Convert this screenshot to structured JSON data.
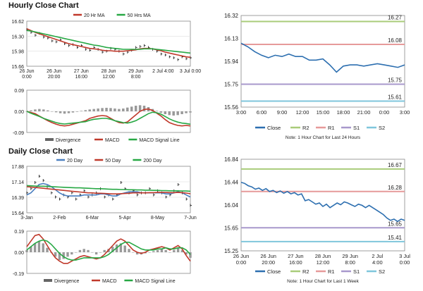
{
  "titles": {
    "hourly": "Hourly Close Chart",
    "daily": "Daily Close Chart"
  },
  "colors": {
    "price": "#111111",
    "ma_short": "#c0392b",
    "ma_long": "#27a844",
    "ma_daily_20": "#4a7fc0",
    "macd": "#c0392b",
    "signal": "#27a844",
    "divergence": "#666666",
    "close": "#2d6fb0",
    "r2": "#a9cc7a",
    "r1": "#e69a9a",
    "s1": "#a898cc",
    "s2": "#7fc6dc"
  },
  "chart_data": [
    {
      "id": "hourly_price",
      "type": "line",
      "legend": [
        "20 Hr MA",
        "50 Hrs MA"
      ],
      "ylim": [
        15.66,
        16.62
      ],
      "yticks": [
        "16.62",
        "16.30",
        "15.98",
        "15.66"
      ],
      "xticks": [
        [
          "26 Jun",
          "0:00"
        ],
        [
          "26 Jun",
          "20:00"
        ],
        [
          "27 Jun",
          "16:00"
        ],
        [
          "28 Jun",
          "12:00"
        ],
        [
          "29 Jun",
          "8:00"
        ],
        [
          "2 Jul 4:00",
          ""
        ],
        [
          "3 Jul 0:00",
          ""
        ]
      ],
      "series": [
        {
          "name": "Close",
          "values": [
            16.44,
            16.38,
            16.32,
            16.36,
            16.28,
            16.26,
            16.2,
            16.18,
            16.22,
            16.14,
            16.1,
            16.12,
            16.06,
            16.1,
            16.02,
            16.0,
            16.06,
            16.02,
            15.96,
            15.98,
            16.04,
            16.02,
            15.98,
            15.92,
            15.96,
            16.0,
            16.06,
            16.08,
            16.1,
            16.06,
            16.02,
            15.98,
            15.92,
            15.9,
            15.86,
            15.84,
            15.8,
            15.86,
            15.82,
            15.84
          ]
        },
        {
          "name": "20 Hr MA",
          "values": [
            16.46,
            16.42,
            16.38,
            16.35,
            16.32,
            16.29,
            16.26,
            16.23,
            16.2,
            16.17,
            16.14,
            16.12,
            16.1,
            16.08,
            16.06,
            16.04,
            16.03,
            16.02,
            16.0,
            15.99,
            15.99,
            15.98,
            15.98,
            15.98,
            15.99,
            16.0,
            16.01,
            16.03,
            16.04,
            16.04,
            16.03,
            16.01,
            15.99,
            15.96,
            15.94,
            15.92,
            15.9,
            15.88,
            15.86,
            15.85
          ]
        },
        {
          "name": "50 Hrs MA",
          "values": [
            16.42,
            16.41,
            16.39,
            16.37,
            16.35,
            16.33,
            16.31,
            16.29,
            16.27,
            16.25,
            16.23,
            16.21,
            16.19,
            16.17,
            16.15,
            16.13,
            16.11,
            16.1,
            16.08,
            16.06,
            16.05,
            16.04,
            16.03,
            16.02,
            16.02,
            16.02,
            16.02,
            16.02,
            16.03,
            16.03,
            16.03,
            16.02,
            16.01,
            16.0,
            15.99,
            15.98,
            15.97,
            15.96,
            15.95,
            15.94
          ]
        }
      ]
    },
    {
      "id": "hourly_macd",
      "type": "line",
      "legend": [
        "Divergence",
        "MACD",
        "MACD Signal Line"
      ],
      "ylim": [
        -0.09,
        0.09
      ],
      "yticks": [
        "0.09",
        "0.00",
        "-0.09"
      ],
      "series": [
        {
          "name": "Divergence",
          "values": [
            0.0,
            0.004,
            0.008,
            0.01,
            0.008,
            0.004,
            0.0,
            -0.004,
            -0.008,
            -0.01,
            -0.008,
            -0.005,
            -0.002,
            0.002,
            0.005,
            0.008,
            0.01,
            0.012,
            0.014,
            0.015,
            0.014,
            0.012,
            0.01,
            0.012,
            0.016,
            0.02,
            0.024,
            0.026,
            0.024,
            0.018,
            0.01,
            0.002,
            -0.006,
            -0.012,
            -0.016,
            -0.018,
            -0.016,
            -0.012,
            -0.008,
            -0.005
          ]
        },
        {
          "name": "MACD",
          "values": [
            0.0,
            -0.005,
            -0.01,
            -0.02,
            -0.03,
            -0.04,
            -0.048,
            -0.055,
            -0.06,
            -0.062,
            -0.06,
            -0.055,
            -0.05,
            -0.045,
            -0.04,
            -0.03,
            -0.025,
            -0.02,
            -0.018,
            -0.02,
            -0.03,
            -0.04,
            -0.048,
            -0.05,
            -0.045,
            -0.03,
            -0.015,
            0.0,
            0.008,
            0.01,
            0.004,
            -0.008,
            -0.02,
            -0.035,
            -0.048,
            -0.055,
            -0.06,
            -0.062,
            -0.06,
            -0.062
          ]
        },
        {
          "name": "MACD Signal Line",
          "values": [
            0.0,
            -0.008,
            -0.015,
            -0.022,
            -0.03,
            -0.036,
            -0.042,
            -0.048,
            -0.052,
            -0.054,
            -0.052,
            -0.05,
            -0.048,
            -0.046,
            -0.044,
            -0.038,
            -0.034,
            -0.032,
            -0.03,
            -0.03,
            -0.034,
            -0.04,
            -0.044,
            -0.048,
            -0.05,
            -0.046,
            -0.04,
            -0.03,
            -0.02,
            -0.01,
            -0.004,
            -0.006,
            -0.012,
            -0.022,
            -0.032,
            -0.04,
            -0.046,
            -0.05,
            -0.052,
            -0.055
          ]
        }
      ]
    },
    {
      "id": "hourly_24h",
      "type": "line",
      "ylim": [
        15.56,
        16.32
      ],
      "yticks": [
        "16.32",
        "16.13",
        "15.94",
        "15.75",
        "15.56"
      ],
      "xticks": [
        "3:00",
        "6:00",
        "9:00",
        "12:00",
        "15:00",
        "18:00",
        "21:00",
        "0:00",
        "3:00"
      ],
      "levels": [
        {
          "name": "R2",
          "value": 16.27,
          "label": "16.27"
        },
        {
          "name": "R1",
          "value": 16.08,
          "label": "16.08"
        },
        {
          "name": "S1",
          "value": 15.75,
          "label": "15.75"
        },
        {
          "name": "S2",
          "value": 15.61,
          "label": "15.61"
        }
      ],
      "legend": [
        "Close",
        "R2",
        "R1",
        "S1",
        "S2"
      ],
      "note": "Note: 1 Hour Chart for Last 24 Hours",
      "series": [
        {
          "name": "Close",
          "values": [
            16.09,
            16.06,
            16.02,
            15.99,
            15.97,
            15.99,
            15.98,
            16.0,
            15.98,
            15.98,
            15.95,
            15.95,
            15.96,
            15.91,
            15.85,
            15.9,
            15.91,
            15.91,
            15.9,
            15.91,
            15.92,
            15.91,
            15.9,
            15.89,
            15.91
          ]
        }
      ]
    },
    {
      "id": "daily_price",
      "type": "line",
      "legend": [
        "20 Day",
        "50 Day",
        "200 Day"
      ],
      "ylim": [
        15.64,
        17.88
      ],
      "yticks": [
        "17.88",
        "17.14",
        "16.39",
        "15.64"
      ],
      "xticks": [
        "3-Jan",
        "2-Feb",
        "6-Mar",
        "5-Apr",
        "8-May",
        "7-Jun"
      ],
      "series": [
        {
          "name": "Close",
          "values": [
            16.6,
            16.8,
            17.1,
            17.4,
            17.2,
            16.9,
            16.6,
            16.4,
            16.3,
            16.5,
            16.4,
            16.6,
            16.3,
            16.5,
            16.7,
            16.4,
            16.5,
            16.6,
            16.8,
            16.4,
            16.5,
            16.3,
            16.5,
            17.1,
            16.8,
            16.6,
            16.7,
            16.5,
            16.6,
            16.6,
            16.8,
            16.5,
            16.7,
            16.6,
            16.4,
            16.5,
            16.7,
            17.0,
            16.6,
            16.3,
            16.0
          ]
        },
        {
          "name": "20 Day",
          "values": [
            16.5,
            16.6,
            16.8,
            17.0,
            17.05,
            17.0,
            16.9,
            16.75,
            16.6,
            16.5,
            16.45,
            16.45,
            16.45,
            16.45,
            16.5,
            16.5,
            16.5,
            16.5,
            16.55,
            16.55,
            16.5,
            16.45,
            16.45,
            16.55,
            16.6,
            16.65,
            16.65,
            16.65,
            16.6,
            16.6,
            16.6,
            16.6,
            16.6,
            16.6,
            16.55,
            16.55,
            16.6,
            16.65,
            16.6,
            16.5,
            16.4
          ]
        },
        {
          "name": "50 Day",
          "values": [
            16.9,
            16.88,
            16.86,
            16.84,
            16.82,
            16.8,
            16.78,
            16.76,
            16.74,
            16.72,
            16.7,
            16.68,
            16.66,
            16.64,
            16.62,
            16.6,
            16.6,
            16.58,
            16.58,
            16.57,
            16.56,
            16.55,
            16.55,
            16.56,
            16.57,
            16.58,
            16.6,
            16.6,
            16.6,
            16.6,
            16.61,
            16.61,
            16.62,
            16.62,
            16.62,
            16.61,
            16.61,
            16.62,
            16.61,
            16.59,
            16.56
          ]
        },
        {
          "name": "200 Day",
          "values": [
            16.95,
            16.94,
            16.93,
            16.92,
            16.92,
            16.91,
            16.9,
            16.89,
            16.88,
            16.87,
            16.86,
            16.85,
            16.84,
            16.84,
            16.83,
            16.82,
            16.81,
            16.8,
            16.8,
            16.79,
            16.78,
            16.77,
            16.77,
            16.76,
            16.76,
            16.75,
            16.75,
            16.74,
            16.74,
            16.73,
            16.73,
            16.72,
            16.72,
            16.71,
            16.71,
            16.7,
            16.7,
            16.7,
            16.69,
            16.69,
            16.68
          ]
        }
      ]
    },
    {
      "id": "daily_macd",
      "type": "line",
      "legend": [
        "Divergence",
        "MACD",
        "MACD Signal Line"
      ],
      "ylim": [
        -0.19,
        0.19
      ],
      "yticks": [
        "0.19",
        "0.00",
        "-0.19"
      ],
      "series": [
        {
          "name": "Divergence",
          "values": [
            0.02,
            0.05,
            0.08,
            0.1,
            0.08,
            0.04,
            0.0,
            -0.04,
            -0.07,
            -0.06,
            -0.04,
            -0.02,
            0.0,
            0.02,
            0.03,
            0.02,
            0.0,
            -0.02,
            0.0,
            0.02,
            0.03,
            0.05,
            0.07,
            0.08,
            0.06,
            0.03,
            0.0,
            -0.02,
            -0.02,
            -0.01,
            0.0,
            0.01,
            0.02,
            0.03,
            0.02,
            0.0,
            0.02,
            0.04,
            0.02,
            -0.02,
            -0.05
          ]
        },
        {
          "name": "MACD",
          "values": [
            0.05,
            0.1,
            0.15,
            0.16,
            0.12,
            0.06,
            0.0,
            -0.05,
            -0.08,
            -0.1,
            -0.1,
            -0.08,
            -0.06,
            -0.04,
            -0.03,
            -0.04,
            -0.05,
            -0.06,
            -0.05,
            -0.02,
            0.02,
            0.06,
            0.1,
            0.12,
            0.1,
            0.06,
            0.02,
            0.0,
            -0.01,
            0.0,
            0.02,
            0.03,
            0.04,
            0.05,
            0.04,
            0.02,
            0.04,
            0.06,
            0.03,
            -0.03,
            -0.08
          ]
        },
        {
          "name": "MACD Signal Line",
          "values": [
            0.02,
            0.05,
            0.08,
            0.1,
            0.11,
            0.1,
            0.07,
            0.03,
            -0.01,
            -0.04,
            -0.06,
            -0.07,
            -0.07,
            -0.06,
            -0.05,
            -0.05,
            -0.05,
            -0.05,
            -0.05,
            -0.04,
            -0.02,
            0.01,
            0.04,
            0.07,
            0.09,
            0.09,
            0.07,
            0.05,
            0.03,
            0.02,
            0.02,
            0.02,
            0.03,
            0.03,
            0.04,
            0.03,
            0.03,
            0.04,
            0.04,
            0.02,
            -0.02
          ]
        }
      ]
    },
    {
      "id": "daily_week",
      "type": "line",
      "ylim": [
        15.25,
        16.84
      ],
      "yticks": [
        "16.84",
        "16.44",
        "16.04",
        "15.65",
        "15.25"
      ],
      "xticks": [
        [
          "26 Jun",
          "0:00"
        ],
        [
          "26 Jun",
          "20:00"
        ],
        [
          "27 Jun",
          "16:00"
        ],
        [
          "28 Jun",
          "12:00"
        ],
        [
          "29 Jun",
          "8:00"
        ],
        [
          "2 Jul",
          "4:00"
        ],
        [
          "3 Jul",
          "0:00"
        ]
      ],
      "levels": [
        {
          "name": "R2",
          "value": 16.67,
          "label": "16.67"
        },
        {
          "name": "R1",
          "value": 16.28,
          "label": "16.28"
        },
        {
          "name": "S1",
          "value": 15.65,
          "label": "15.65"
        },
        {
          "name": "S2",
          "value": 15.41,
          "label": "15.41"
        }
      ],
      "legend": [
        "Close",
        "R2",
        "R1",
        "S1",
        "S2"
      ],
      "note": "Note: 1 Hour Chart for Last 1 Week",
      "series": [
        {
          "name": "Close",
          "values": [
            16.44,
            16.42,
            16.38,
            16.36,
            16.32,
            16.34,
            16.3,
            16.33,
            16.28,
            16.3,
            16.26,
            16.29,
            16.25,
            16.28,
            16.24,
            16.26,
            16.22,
            16.24,
            16.12,
            16.14,
            16.1,
            16.06,
            16.08,
            16.02,
            16.06,
            16.0,
            16.04,
            16.08,
            16.05,
            16.1,
            16.08,
            16.05,
            16.02,
            16.06,
            16.04,
            16.0,
            16.04,
            16.0,
            15.96,
            15.92,
            15.88,
            15.82,
            15.78,
            15.8,
            15.76,
            15.8,
            15.78
          ]
        }
      ]
    }
  ]
}
